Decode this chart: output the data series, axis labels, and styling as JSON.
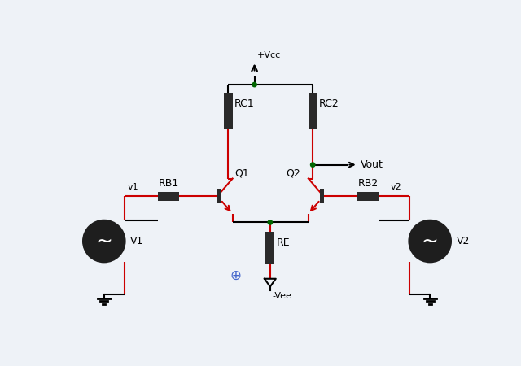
{
  "bg_color": "#eef2f7",
  "wire_color": "#cc0000",
  "black": "#000000",
  "node_color": "#006600",
  "labels": {
    "Vcc": "+Vcc",
    "Vee": "-Vee",
    "RC1": "RC1",
    "RC2": "RC2",
    "RB1": "RB1",
    "RB2": "RB2",
    "RE": "RE",
    "Q1": "Q1",
    "Q2": "Q2",
    "V1": "V1",
    "V2": "V2",
    "v1": "v1",
    "v2": "v2",
    "Vout": "Vout",
    "gnd_sym": "⊕"
  }
}
